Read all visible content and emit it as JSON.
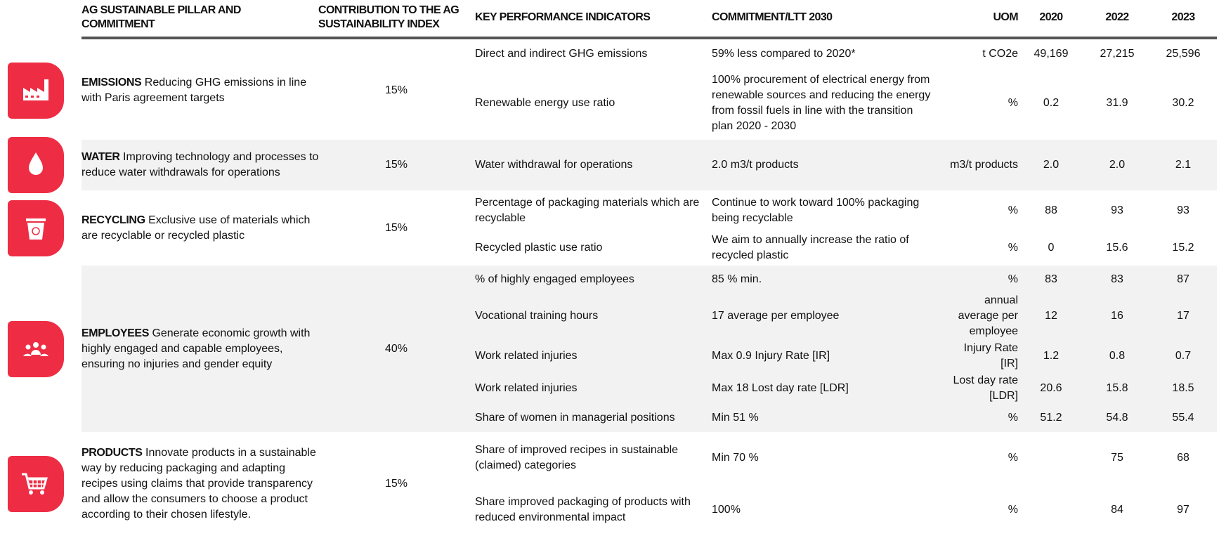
{
  "header": {
    "columns": [
      "AG SUSTAINABLE PILLAR AND COMMITMENT",
      "CONTRIBUTION TO THE AG SUSTAINABILITY INDEX",
      "KEY PERFORMANCE INDICATORS",
      "COMMITMENT/LTT 2030",
      "UOM",
      "2020",
      "2022",
      "2023"
    ]
  },
  "pillars": [
    {
      "name": "EMISSIONS",
      "description": "Reducing GHG emissions in line with Paris agreement targets",
      "contribution": "15%",
      "kpis": [
        {
          "kpi": "Direct and indirect GHG emissions",
          "commitment": "59% less compared to 2020*",
          "uom": "t CO2e",
          "values": [
            "49,169",
            "27,215",
            "25,596"
          ]
        },
        {
          "kpi": "Renewable energy use ratio",
          "commitment": "100% procurement of electrical energy from renewable sources and reducing the energy from fossil fuels in line with the transition plan 2020 - 2030",
          "uom": "%",
          "values": [
            "0.2",
            "31.9",
            "30.2"
          ]
        }
      ]
    },
    {
      "name": "WATER",
      "description": "Improving technology and processes to reduce water withdrawals for operations",
      "contribution": "15%",
      "kpis": [
        {
          "kpi": "Water withdrawal for operations",
          "commitment": "2.0 m3/t products",
          "uom": "m3/t products",
          "values": [
            "2.0",
            "2.0",
            "2.1"
          ]
        }
      ]
    },
    {
      "name": "RECYCLING",
      "description": "Exclusive use of materials which are recyclable or recycled plastic",
      "contribution": "15%",
      "kpis": [
        {
          "kpi": "Percentage of packaging materials which are recyclable",
          "commitment": "Continue to work toward 100% packaging being recyclable",
          "uom": "%",
          "values": [
            "88",
            "93",
            "93"
          ]
        },
        {
          "kpi": "Recycled plastic use ratio",
          "commitment": "We aim to annually increase the ratio of recycled plastic",
          "uom": "%",
          "values": [
            "0",
            "15.6",
            "15.2"
          ]
        }
      ]
    },
    {
      "name": "EMPLOYEES",
      "description": "Generate economic growth with highly engaged and capable employees, ensuring no injuries and gender equity",
      "contribution": "40%",
      "kpis": [
        {
          "kpi": "% of highly engaged employees",
          "commitment": "85 % min.",
          "uom": "%",
          "values": [
            "83",
            "83",
            "87"
          ]
        },
        {
          "kpi": "Vocational training hours",
          "commitment": "17 average per employee",
          "uom": "annual average per employee",
          "values": [
            "12",
            "16",
            "17"
          ]
        },
        {
          "kpi": "Work related injuries",
          "commitment": "Max 0.9 Injury Rate [IR]",
          "uom": "Injury Rate [IR]",
          "values": [
            "1.2",
            "0.8",
            "0.7"
          ]
        },
        {
          "kpi": "Work related injuries",
          "commitment": "Max 18 Lost day rate [LDR]",
          "uom": "Lost day rate [LDR]",
          "values": [
            "20.6",
            "15.8",
            "18.5"
          ]
        },
        {
          "kpi": "Share of women in managerial positions",
          "commitment": "Min 51 %",
          "uom": "%",
          "values": [
            "51.2",
            "54.8",
            "55.4"
          ]
        }
      ]
    },
    {
      "name": "PRODUCTS",
      "description": "Innovate products in a sustainable way by reducing packaging and adapting recipes using claims that provide transparency and allow the consumers to choose a product according to their chosen lifestyle.",
      "contribution": "15%",
      "kpis": [
        {
          "kpi": "Share of improved recipes in sustainable (claimed) categories",
          "commitment": "Min 70 %",
          "uom": "%",
          "values": [
            null,
            "75",
            "68"
          ]
        },
        {
          "kpi": "Share improved packaging of products with reduced environmental impact",
          "commitment": "100%",
          "uom": "%",
          "values": [
            null,
            "84",
            "97"
          ]
        }
      ]
    }
  ]
}
